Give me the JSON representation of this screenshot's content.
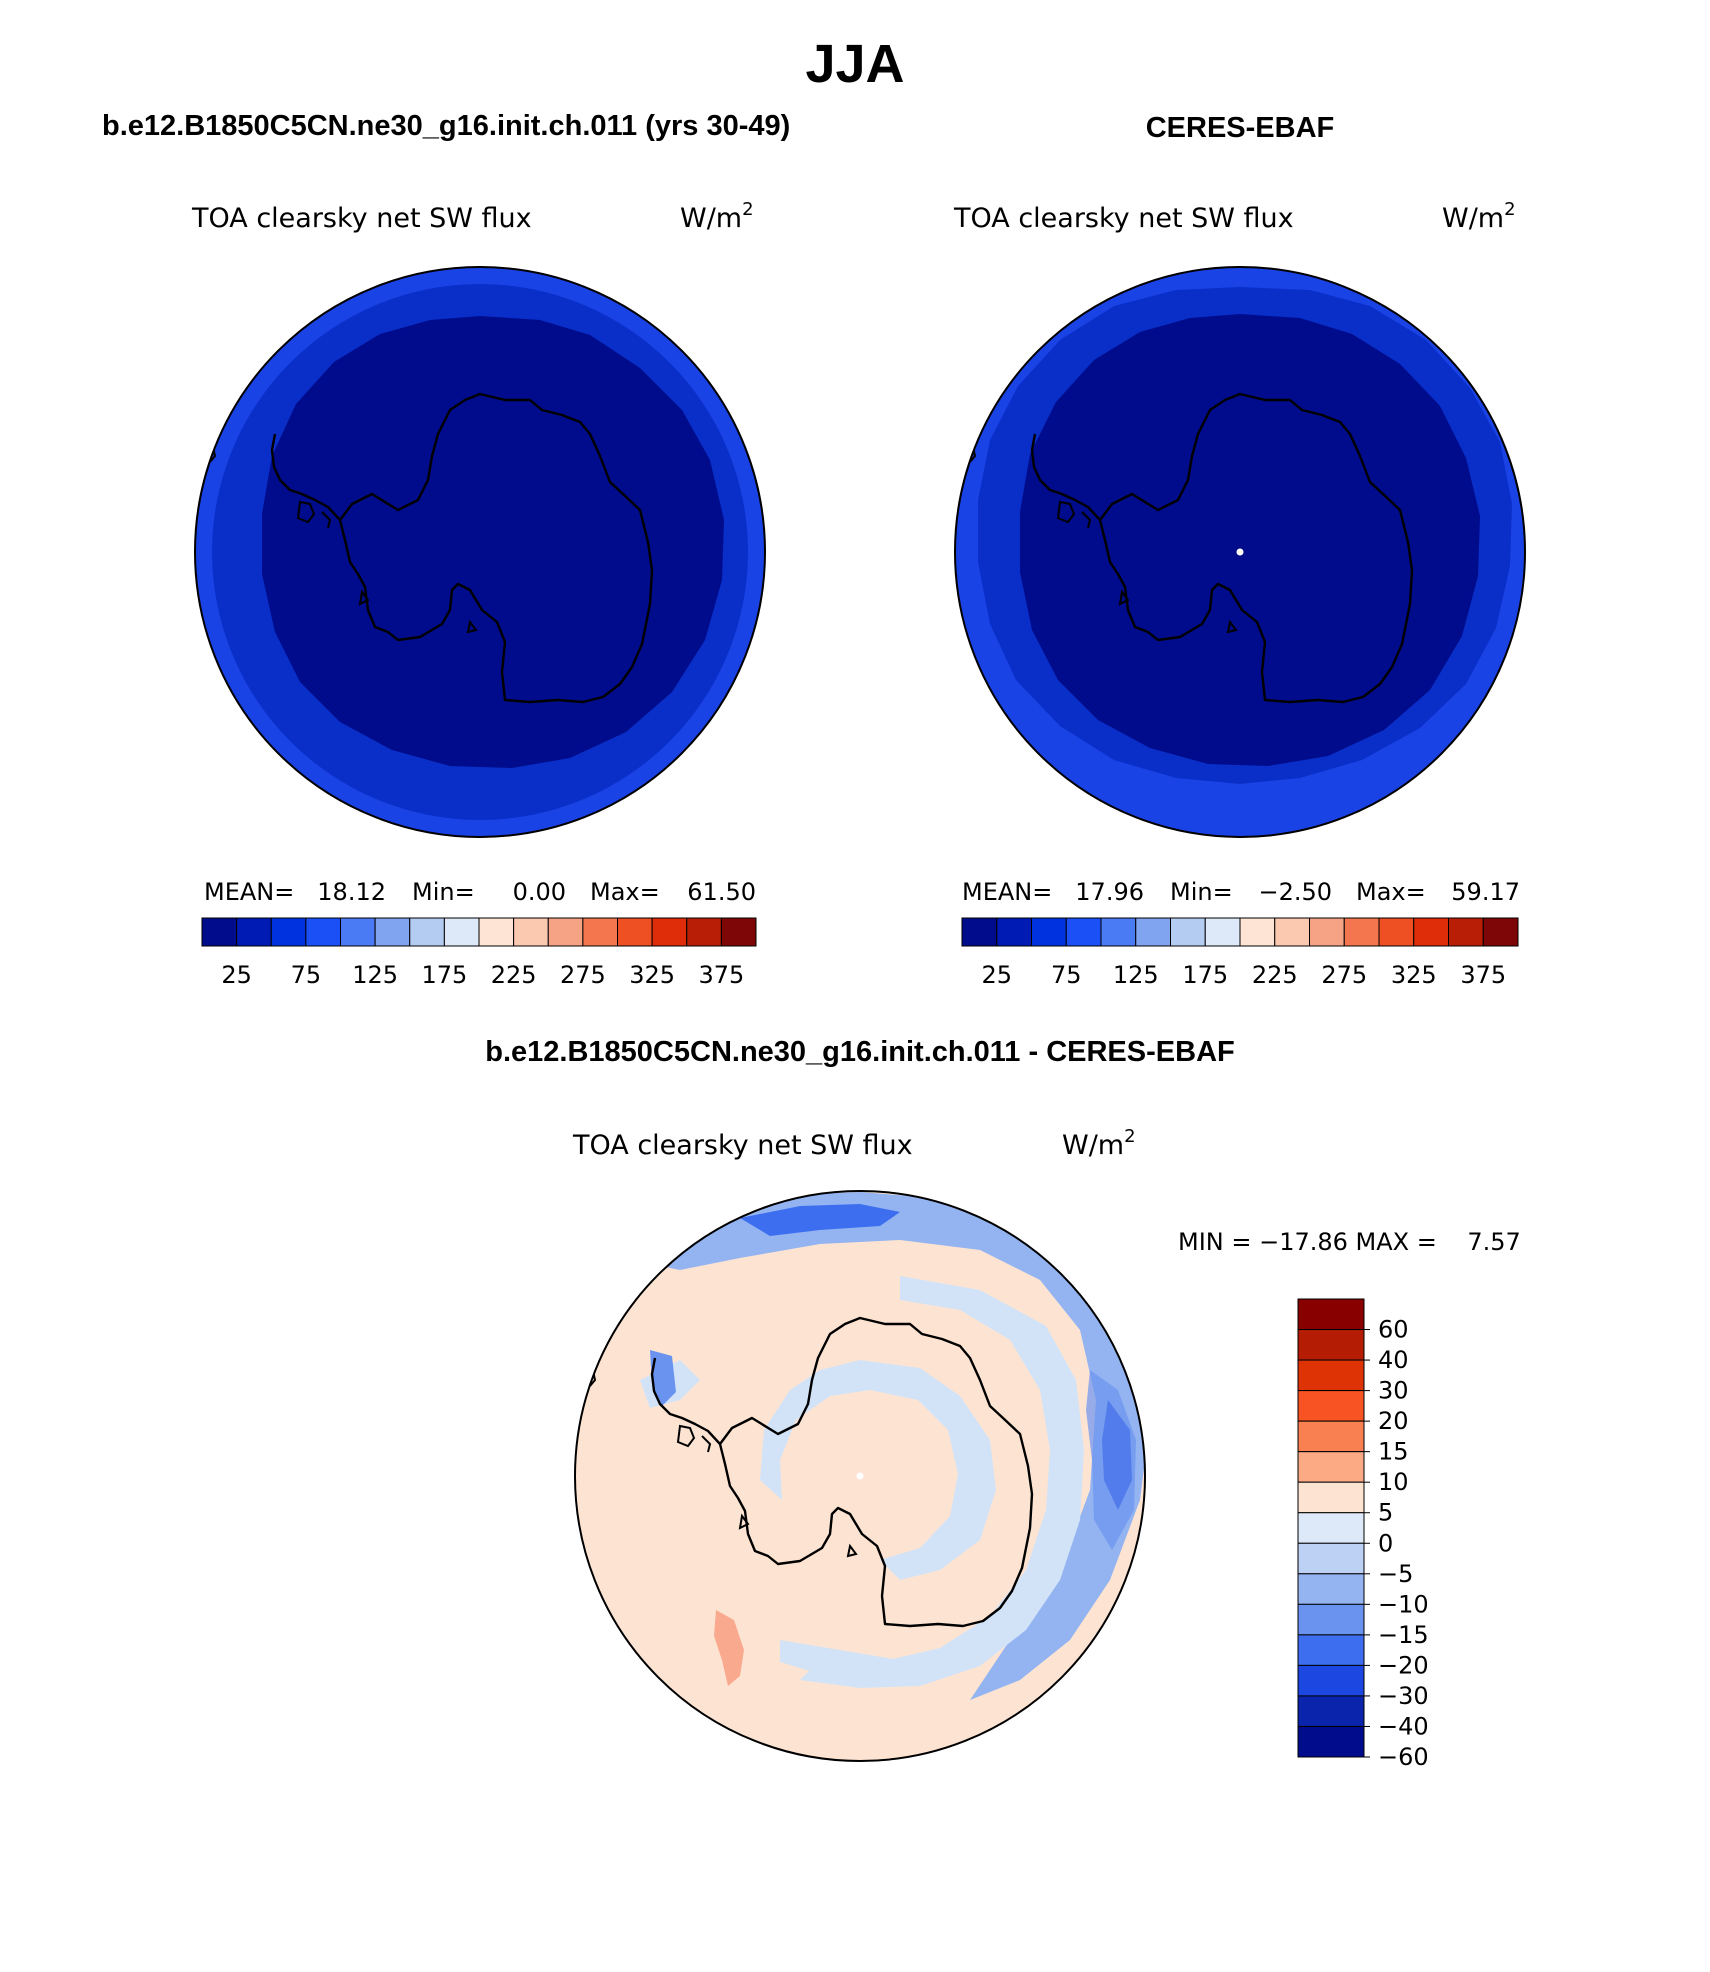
{
  "title": "JJA",
  "panels": [
    {
      "case_title": "b.e12.B1850C5CN.ne30_g16.init.ch.011 (yrs 30-49)",
      "variable": "TOA clearsky net SW flux",
      "units_base": "W/m",
      "units_exp": "2",
      "stats_labels": [
        "MEAN=",
        "Min=",
        "Max="
      ],
      "stats_values": [
        "18.12",
        "0.00",
        "61.50"
      ],
      "colorbar_labels": [
        "25",
        "75",
        "125",
        "175",
        "225",
        "275",
        "325",
        "375"
      ]
    },
    {
      "case_title": "CERES-EBAF",
      "variable": "TOA clearsky net SW flux",
      "units_base": "W/m",
      "units_exp": "2",
      "stats_labels": [
        "MEAN=",
        "Min=",
        "Max="
      ],
      "stats_values": [
        "17.96",
        "−2.50",
        "59.17"
      ],
      "colorbar_labels": [
        "25",
        "75",
        "125",
        "175",
        "225",
        "275",
        "325",
        "375"
      ]
    }
  ],
  "diff_panel": {
    "case_title": "b.e12.B1850C5CN.ne30_g16.init.ch.011 - CERES-EBAF",
    "variable": "TOA clearsky net SW flux",
    "units_base": "W/m",
    "units_exp": "2",
    "minmax_text": "MIN = −17.86 MAX =    7.57",
    "colorbar_labels": [
      "60",
      "40",
      "30",
      "20",
      "15",
      "10",
      "5",
      "0",
      "−5",
      "−10",
      "−15",
      "−20",
      "−30",
      "−40",
      "−60"
    ]
  },
  "colors": {
    "abs_colorbar": [
      "#000c8b",
      "#001ab4",
      "#0033df",
      "#1a50f5",
      "#4a7af4",
      "#80a4f0",
      "#b4cbf2",
      "#dde9f8",
      "#fde4d4",
      "#fbc8b0",
      "#f6a284",
      "#f4764f",
      "#ee4f23",
      "#de2d08",
      "#b81e05",
      "#7e0606"
    ],
    "diff_colorbar": [
      "#880000",
      "#b41d04",
      "#de3304",
      "#f85322",
      "#f98050",
      "#fbaa84",
      "#fde4d2",
      "#dde9f8",
      "#bdd1f5",
      "#94b4f1",
      "#6a93ef",
      "#3e6ef0",
      "#1c47e0",
      "#0a24ab",
      "#000c8b"
    ],
    "navy_interior": "#000c8b",
    "ring_blue": "#0a2ec8",
    "outer_blue": "#1a43e6",
    "diff_background": "#fde4d2",
    "diff_light_blue": "#d2e3f8"
  }
}
